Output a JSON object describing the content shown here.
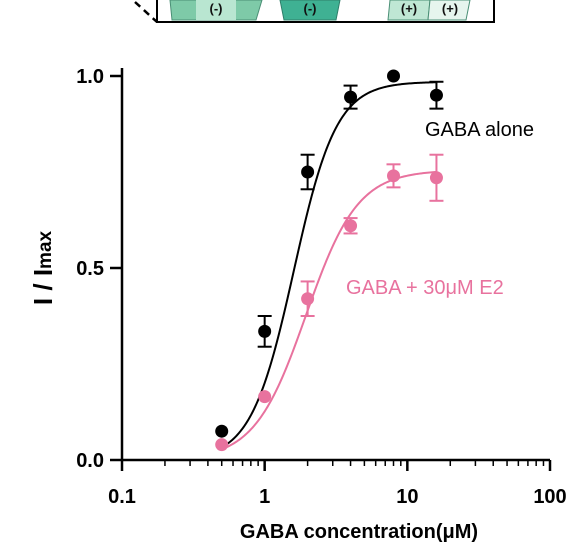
{
  "inset": {
    "labels": [
      "(-)",
      "(-)",
      "(+)",
      "(+)"
    ]
  },
  "chart_data": {
    "type": "scatter",
    "x_scale": "log",
    "xlim": [
      0.1,
      100
    ],
    "ylim": [
      0.0,
      1.0
    ],
    "xlabel": "GABA concentration(μM)",
    "ylabel_main": "I / I",
    "ylabel_sub": "max",
    "x_ticks": [
      {
        "value": 0.1,
        "label": "0.1"
      },
      {
        "value": 1,
        "label": "1"
      },
      {
        "value": 10,
        "label": "10"
      },
      {
        "value": 100,
        "label": "100"
      }
    ],
    "y_ticks": [
      {
        "value": 0.0,
        "label": "0.0"
      },
      {
        "value": 0.5,
        "label": "0.5"
      },
      {
        "value": 1.0,
        "label": "1.0"
      }
    ],
    "grid": false,
    "series": [
      {
        "name": "GABA alone",
        "color": "#000000",
        "x": [
          0.5,
          1,
          2,
          4,
          8,
          16
        ],
        "y": [
          0.075,
          0.335,
          0.75,
          0.945,
          1.0,
          0.95
        ],
        "err": [
          0.0,
          0.04,
          0.045,
          0.03,
          0.0,
          0.035
        ],
        "fit": {
          "bottom": 0.0,
          "top": 0.985,
          "ec50": 1.6,
          "hill": 2.9
        }
      },
      {
        "name": "GABA + 30μM E2",
        "color": "#e8729e",
        "x": [
          0.5,
          1,
          2,
          4,
          8,
          16
        ],
        "y": [
          0.04,
          0.165,
          0.42,
          0.61,
          0.74,
          0.735
        ],
        "err": [
          0.0,
          0.0,
          0.045,
          0.02,
          0.03,
          0.06
        ],
        "fit": {
          "bottom": 0.0,
          "top": 0.755,
          "ec50": 1.95,
          "hill": 2.4
        }
      }
    ]
  }
}
